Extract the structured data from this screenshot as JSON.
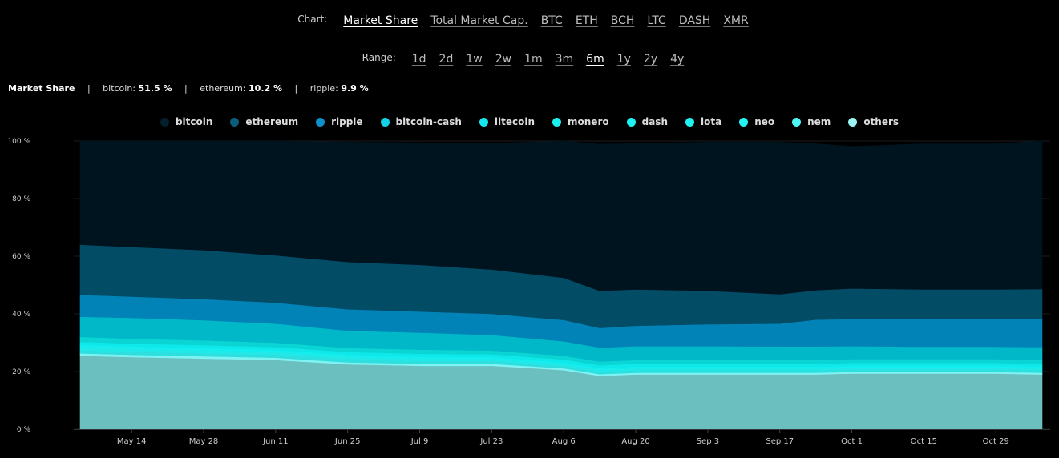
{
  "header": {
    "chart_label": "Chart:",
    "chart_tabs": [
      {
        "label": "Market Share",
        "active": true
      },
      {
        "label": "Total Market Cap.",
        "active": false
      },
      {
        "label": "BTC",
        "active": false
      },
      {
        "label": "ETH",
        "active": false
      },
      {
        "label": "BCH",
        "active": false
      },
      {
        "label": "LTC",
        "active": false
      },
      {
        "label": "DASH",
        "active": false
      },
      {
        "label": "XMR",
        "active": false
      }
    ],
    "range_label": "Range:",
    "range_tabs": [
      {
        "label": "1d",
        "active": false
      },
      {
        "label": "2d",
        "active": false
      },
      {
        "label": "1w",
        "active": false
      },
      {
        "label": "2w",
        "active": false
      },
      {
        "label": "1m",
        "active": false
      },
      {
        "label": "3m",
        "active": false
      },
      {
        "label": "6m",
        "active": true
      },
      {
        "label": "1y",
        "active": false
      },
      {
        "label": "2y",
        "active": false
      },
      {
        "label": "4y",
        "active": false
      }
    ]
  },
  "summary": {
    "title": "Market Share",
    "items": [
      {
        "name": "bitcoin:",
        "value": "51.5 %"
      },
      {
        "name": "ethereum:",
        "value": "10.2 %"
      },
      {
        "name": "ripple:",
        "value": "9.9 %"
      }
    ]
  },
  "chart_data": {
    "type": "area",
    "stacked": true,
    "ylabel": "",
    "xlabel": "",
    "ylim": [
      0,
      100
    ],
    "yticks": [
      "0 %",
      "20 %",
      "40 %",
      "60 %",
      "80 %",
      "100 %"
    ],
    "ytick_values": [
      0,
      20,
      40,
      60,
      80,
      100
    ],
    "xticks": [
      "May 14",
      "May 28",
      "Jun 11",
      "Jun 25",
      "Jul 9",
      "Jul 23",
      "Aug 6",
      "Aug 20",
      "Sep 3",
      "Sep 17",
      "Oct 1",
      "Oct 15",
      "Oct 29"
    ],
    "x": [
      "May 4",
      "May 14",
      "May 28",
      "Jun 11",
      "Jun 25",
      "Jul 9",
      "Jul 23",
      "Aug 6",
      "Aug 13",
      "Aug 20",
      "Sep 3",
      "Sep 17",
      "Sep 24",
      "Oct 1",
      "Oct 15",
      "Oct 29",
      "Nov 7"
    ],
    "grid": true,
    "legend_position": "top",
    "stack_order": "others at bottom, bitcoin at top",
    "series": [
      {
        "name": "others",
        "color": "#6cbfbf",
        "values": [
          25.5,
          25,
          24.5,
          24,
          22.5,
          22,
          22,
          20.5,
          18.5,
          19,
          19,
          19,
          19,
          19.3,
          19.3,
          19.3,
          19
        ]
      },
      {
        "name": "nem",
        "color": "#7ff2f2",
        "values": [
          0.8,
          0.8,
          0.8,
          0.8,
          0.7,
          0.7,
          0.7,
          0.6,
          0.6,
          0.6,
          0.6,
          0.6,
          0.6,
          0.6,
          0.6,
          0.6,
          0.6
        ]
      },
      {
        "name": "neo",
        "color": "#2fdede",
        "values": [
          1,
          1,
          1,
          1,
          1,
          0.9,
          0.9,
          0.8,
          0.8,
          0.8,
          0.8,
          0.8,
          0.8,
          0.8,
          0.8,
          0.8,
          0.8
        ]
      },
      {
        "name": "iota",
        "color": "#22e8e8",
        "values": [
          1.2,
          1.1,
          1.1,
          1,
          0.9,
          0.9,
          0.8,
          0.7,
          0.7,
          0.7,
          0.7,
          0.7,
          0.7,
          0.7,
          0.7,
          0.7,
          0.7
        ]
      },
      {
        "name": "dash",
        "color": "#14eeee",
        "values": [
          0.8,
          0.8,
          0.8,
          0.7,
          0.7,
          0.7,
          0.6,
          0.6,
          0.6,
          0.6,
          0.6,
          0.6,
          0.6,
          0.6,
          0.6,
          0.6,
          0.6
        ]
      },
      {
        "name": "monero",
        "color": "#0fe8e8",
        "values": [
          1,
          1,
          1,
          1,
          1,
          1,
          1,
          1,
          1,
          1,
          1,
          1,
          1,
          1,
          1,
          1,
          1
        ]
      },
      {
        "name": "litecoin",
        "color": "#0ad4d4",
        "values": [
          1.7,
          1.7,
          1.6,
          1.5,
          1.4,
          1.4,
          1.3,
          1.3,
          1.3,
          1.3,
          1.3,
          1.3,
          1.3,
          1.3,
          1.3,
          1.3,
          1.3
        ]
      },
      {
        "name": "bitcoin-cash",
        "color": "#00b8c8",
        "values": [
          7,
          7.2,
          7,
          6.6,
          6,
          5.9,
          5.4,
          5,
          4.8,
          4.8,
          4.8,
          4.7,
          4.7,
          4.5,
          4.3,
          4.3,
          4.5
        ]
      },
      {
        "name": "ripple",
        "color": "#0283b8",
        "values": [
          7.6,
          7.4,
          7.3,
          7.3,
          7.4,
          7.3,
          7.3,
          7.4,
          6.8,
          7.1,
          7.6,
          7.9,
          9.3,
          9.4,
          9.7,
          9.8,
          9.9
        ]
      },
      {
        "name": "ethereum",
        "color": "#034c66",
        "values": [
          17.4,
          17.2,
          17,
          16.4,
          16.4,
          16.2,
          15.4,
          14.6,
          12.9,
          12.6,
          11.6,
          10.2,
          10.2,
          10.6,
          10.2,
          10.1,
          10.2
        ]
      },
      {
        "name": "bitcoin",
        "color": "#001420",
        "values": [
          36,
          36.8,
          37.9,
          39.7,
          41.6,
          42.4,
          43.8,
          47.5,
          50.9,
          50.6,
          51.6,
          52.8,
          50.8,
          49.3,
          50.5,
          50.5,
          51.5
        ]
      }
    ]
  },
  "legend_order": [
    "bitcoin",
    "ethereum",
    "ripple",
    "bitcoin-cash",
    "litecoin",
    "monero",
    "dash",
    "iota",
    "neo",
    "nem",
    "others"
  ],
  "legend_colors": {
    "bitcoin": "#041f2b",
    "ethereum": "#0b5d7c",
    "ripple": "#0d8fc9",
    "bitcoin-cash": "#13d2e8",
    "litecoin": "#16e6ee",
    "monero": "#1bf0f0",
    "dash": "#1cf2f2",
    "iota": "#20f2f2",
    "neo": "#25f3f3",
    "nem": "#4ef5f5",
    "others": "#9af4f4"
  }
}
